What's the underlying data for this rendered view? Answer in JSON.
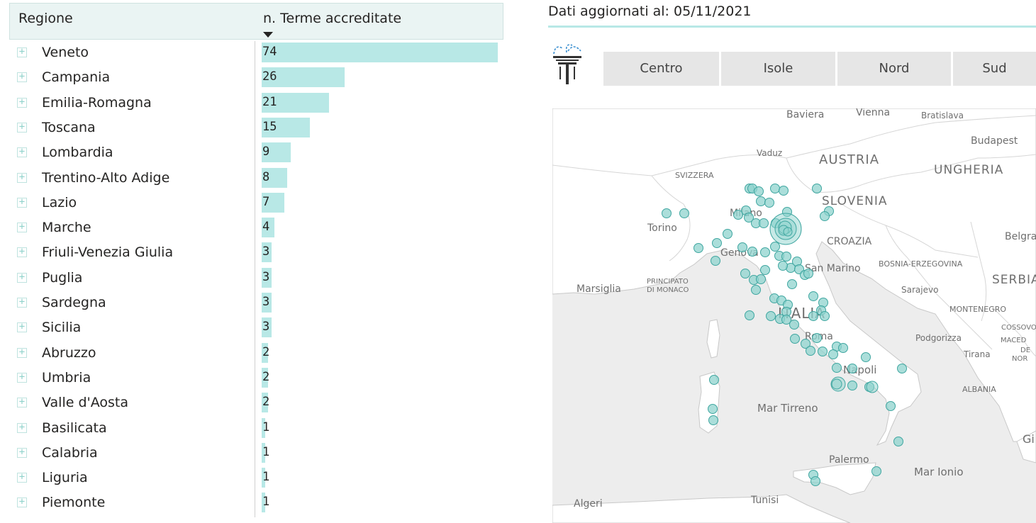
{
  "table": {
    "header": {
      "region": "Regione",
      "count": "n. Terme accreditate"
    },
    "max_value": 74,
    "rows": [
      {
        "name": "Veneto",
        "value": 74
      },
      {
        "name": "Campania",
        "value": 26
      },
      {
        "name": "Emilia-Romagna",
        "value": 21
      },
      {
        "name": "Toscana",
        "value": 15
      },
      {
        "name": "Lombardia",
        "value": 9
      },
      {
        "name": "Trentino-Alto Adige",
        "value": 8
      },
      {
        "name": "Lazio",
        "value": 7
      },
      {
        "name": "Marche",
        "value": 4
      },
      {
        "name": "Friuli-Venezia Giulia",
        "value": 3
      },
      {
        "name": "Puglia",
        "value": 3
      },
      {
        "name": "Sardegna",
        "value": 3
      },
      {
        "name": "Sicilia",
        "value": 3
      },
      {
        "name": "Abruzzo",
        "value": 2
      },
      {
        "name": "Umbria",
        "value": 2
      },
      {
        "name": "Valle d'Aosta",
        "value": 2
      },
      {
        "name": "Basilicata",
        "value": 1
      },
      {
        "name": "Calabria",
        "value": 1
      },
      {
        "name": "Liguria",
        "value": 1
      },
      {
        "name": "Piemonte",
        "value": 1
      }
    ]
  },
  "update": {
    "label": "Dati aggiornati al:",
    "date": "05/11/2021"
  },
  "logo_icon": "fountain-icon",
  "slicer": {
    "options": [
      "Centro",
      "Isole",
      "Nord",
      "Sud"
    ]
  },
  "map": {
    "labels": {
      "baviera": "Baviera",
      "vienna": "Vienna",
      "bratislava": "Bratislava",
      "budapest": "Budapest",
      "vaduz": "Vaduz",
      "austria": "AUSTRIA",
      "ungheria": "UNGHERIA",
      "svizzera": "SVIZZERA",
      "slovenia": "SLOVENIA",
      "milano": "Milano",
      "torino": "Torino",
      "croazia": "CROAZIA",
      "belgrado": "Belgra",
      "genova": "Genova",
      "san_marino": "San Marino",
      "bosnia": "BOSNIA-ERZEGOVINA",
      "principato1": "PRINCIPATO",
      "principato2": "DI MONACO",
      "marsiglia": "Marsiglia",
      "sarajevo": "Sarajevo",
      "serbia": "SERBIA",
      "montenegro": "MONTENEGRO",
      "italia": "ITALIA",
      "kosovo": "COSSOVO",
      "roma": "Roma",
      "podgorizza": "Podgorizza",
      "macedonia1": "MACED",
      "macedonia2": "DE",
      "macedonia3": "NOR",
      "tirana": "Tirana",
      "napoli": "Napoli",
      "albania": "ALBANIA",
      "mar_tirreno": "Mar Tirreno",
      "palermo": "Palermo",
      "mar_ionio": "Mar Ionio",
      "algeri": "Algeri",
      "tunisi": "Tunisi",
      "grecia": "Gi"
    },
    "colors": {
      "marker_fill": "#8fd3cd",
      "marker_stroke": "#3fa6a0",
      "sea": "#ededed",
      "land": "#ffffff"
    }
  }
}
